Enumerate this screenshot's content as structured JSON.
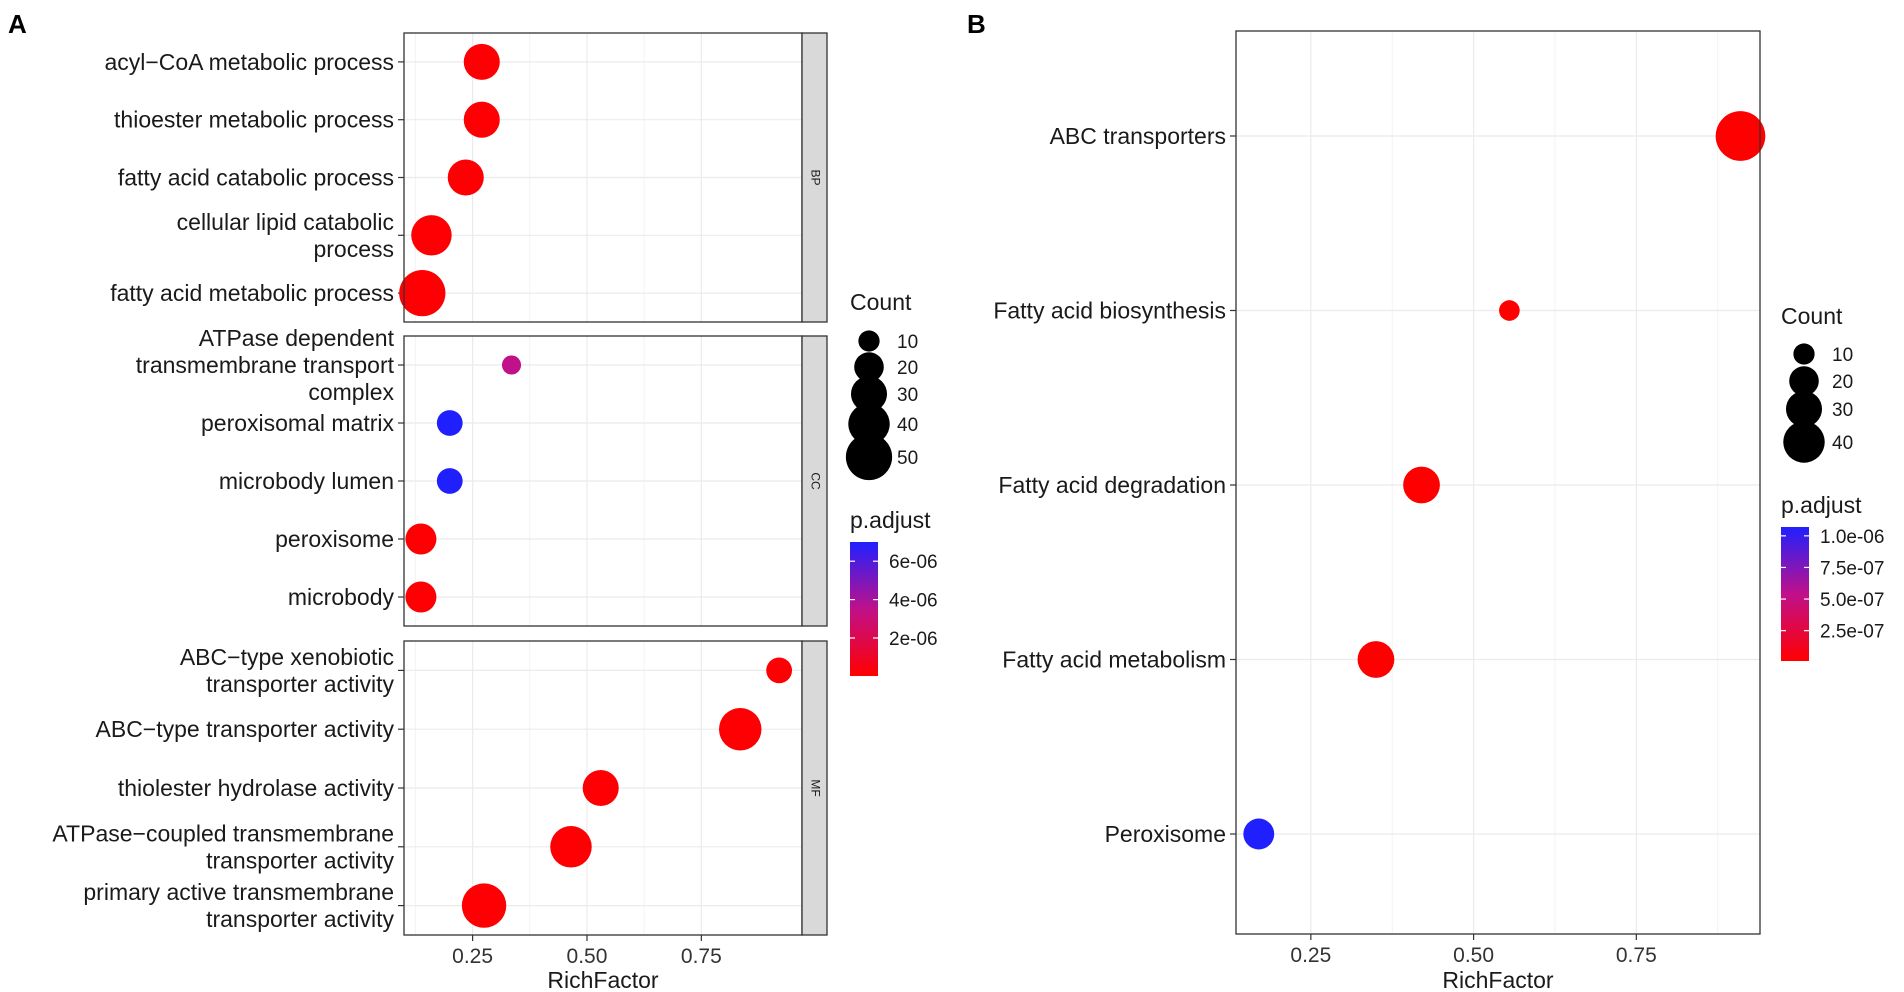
{
  "panels": {
    "a_label": "A",
    "b_label": "B"
  },
  "legend_a": {
    "count_title": "Count",
    "count_sizes": [
      10,
      20,
      30,
      40,
      50
    ],
    "count_labels": [
      "10",
      "20",
      "30",
      "40",
      "50"
    ],
    "padj_title": "p.adjust",
    "padj_labels": [
      "6e-06",
      "4e-06",
      "2e-06"
    ],
    "padj_values": [
      6e-06,
      4e-06,
      2e-06
    ],
    "padj_range": [
      2e-08,
      7e-06
    ]
  },
  "legend_b": {
    "count_title": "Count",
    "count_sizes": [
      10,
      20,
      30,
      40
    ],
    "count_labels": [
      "10",
      "20",
      "30",
      "40"
    ],
    "padj_title": "p.adjust",
    "padj_labels": [
      "1.0e-06",
      "7.5e-07",
      "5.0e-07",
      "2.5e-07"
    ],
    "padj_values": [
      1e-06,
      7.5e-07,
      5e-07,
      2.5e-07
    ],
    "padj_range": [
      1e-08,
      1.07e-06
    ]
  },
  "colors": {
    "low": "#ff0000",
    "high": "#0000ff",
    "strip_bg": "#d9d9d9",
    "grid": "#ebebeb"
  },
  "chart_data": [
    {
      "type": "scatter",
      "panel": "A",
      "xlabel": "RichFactor",
      "xlim": [
        0.1,
        0.97
      ],
      "xticks": [
        0.25,
        0.5,
        0.75
      ],
      "xtick_labels": [
        "0.25",
        "0.50",
        "0.75"
      ],
      "facets": [
        {
          "strip": "BP",
          "terms": [
            {
              "label": [
                "acyl−CoA metabolic process"
              ],
              "rich": 0.27,
              "count": 30,
              "padj": 1e-07
            },
            {
              "label": [
                "thioester metabolic process"
              ],
              "rich": 0.27,
              "count": 30,
              "padj": 1e-07
            },
            {
              "label": [
                "fatty acid catabolic process"
              ],
              "rich": 0.235,
              "count": 30,
              "padj": 1e-07
            },
            {
              "label": [
                "cellular lipid catabolic",
                "process"
              ],
              "rich": 0.16,
              "count": 38,
              "padj": 1e-07
            },
            {
              "label": [
                "fatty acid metabolic process"
              ],
              "rich": 0.14,
              "count": 50,
              "padj": 1e-07
            }
          ]
        },
        {
          "strip": "CC",
          "terms": [
            {
              "label": [
                "ATPase dependent",
                "transmembrane transport",
                "complex"
              ],
              "rich": 0.335,
              "count": 8,
              "padj": 3.5e-06
            },
            {
              "label": [
                "peroxisomal matrix"
              ],
              "rich": 0.2,
              "count": 15,
              "padj": 7e-06
            },
            {
              "label": [
                "microbody lumen"
              ],
              "rich": 0.2,
              "count": 15,
              "padj": 7e-06
            },
            {
              "label": [
                "peroxisome"
              ],
              "rich": 0.137,
              "count": 22,
              "padj": 1e-07
            },
            {
              "label": [
                "microbody"
              ],
              "rich": 0.137,
              "count": 22,
              "padj": 1e-07
            }
          ]
        },
        {
          "strip": "MF",
          "terms": [
            {
              "label": [
                "ABC−type xenobiotic",
                "transporter activity"
              ],
              "rich": 0.92,
              "count": 15,
              "padj": 1e-07
            },
            {
              "label": [
                "ABC−type transporter activity"
              ],
              "rich": 0.835,
              "count": 42,
              "padj": 1e-07
            },
            {
              "label": [
                "thiolester hydrolase activity"
              ],
              "rich": 0.53,
              "count": 30,
              "padj": 1e-07
            },
            {
              "label": [
                "ATPase−coupled transmembrane",
                "transporter activity"
              ],
              "rich": 0.465,
              "count": 40,
              "padj": 1e-07
            },
            {
              "label": [
                "primary active transmembrane",
                "transporter activity"
              ],
              "rich": 0.275,
              "count": 46,
              "padj": 1e-07
            }
          ]
        }
      ]
    },
    {
      "type": "scatter",
      "panel": "B",
      "xlabel": "RichFactor",
      "xlim": [
        0.135,
        0.94
      ],
      "xticks": [
        0.25,
        0.5,
        0.75
      ],
      "xtick_labels": [
        "0.25",
        "0.50",
        "0.75"
      ],
      "terms": [
        {
          "label": "ABC transporters",
          "rich": 0.91,
          "count": 42,
          "padj": 1e-08
        },
        {
          "label": "Fatty acid biosynthesis",
          "rich": 0.555,
          "count": 6,
          "padj": 1e-08
        },
        {
          "label": "Fatty acid degradation",
          "rich": 0.42,
          "count": 22,
          "padj": 1e-08
        },
        {
          "label": "Fatty acid metabolism",
          "rich": 0.35,
          "count": 22,
          "padj": 1e-08
        },
        {
          "label": "Peroxisome",
          "rich": 0.17,
          "count": 15,
          "padj": 1.07e-06
        }
      ]
    }
  ]
}
